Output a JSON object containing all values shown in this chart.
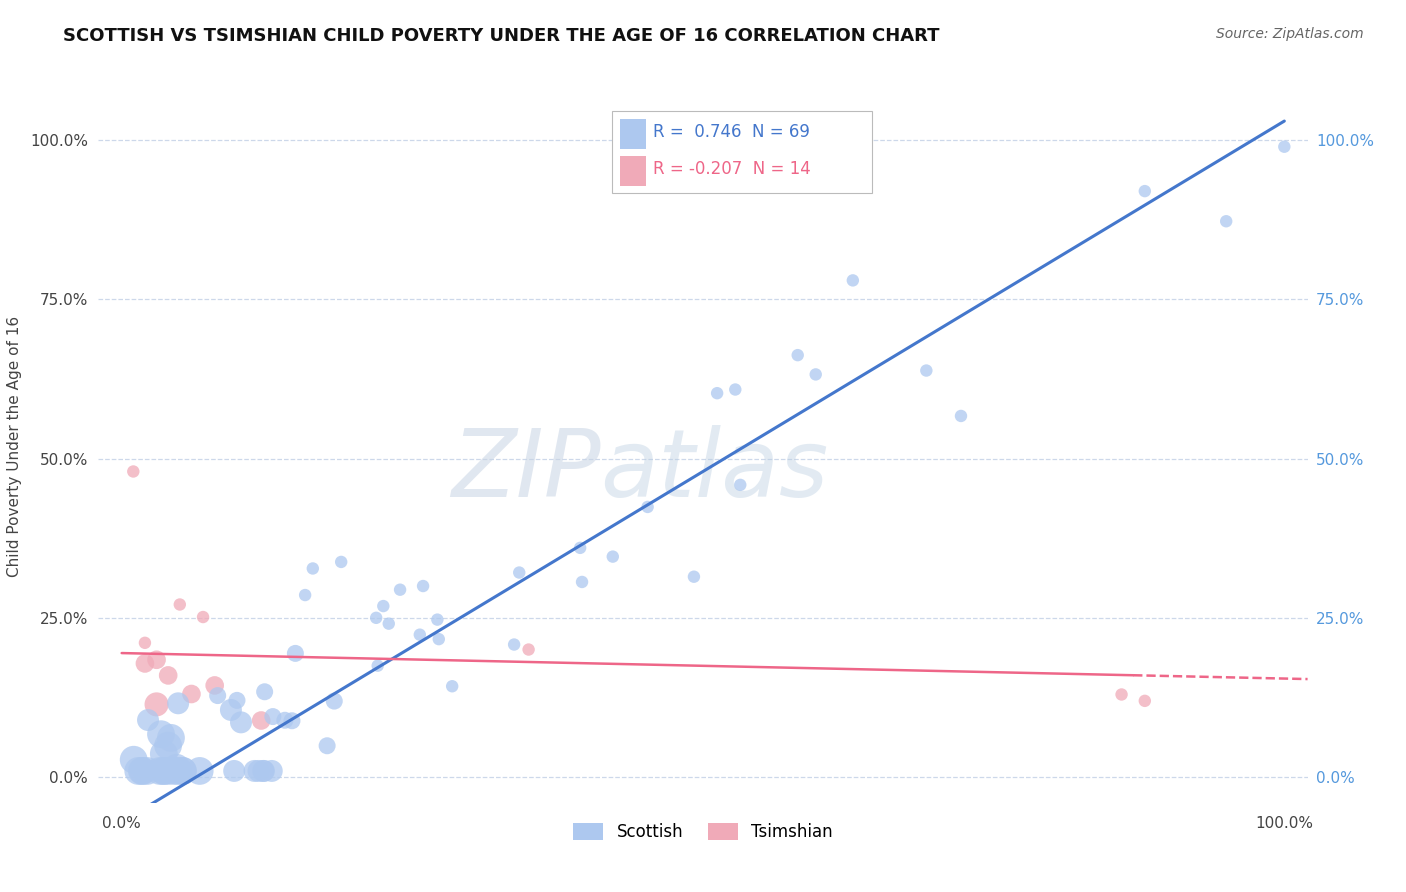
{
  "title": "SCOTTISH VS TSIMSHIAN CHILD POVERTY UNDER THE AGE OF 16 CORRELATION CHART",
  "source": "Source: ZipAtlas.com",
  "ylabel": "Child Poverty Under the Age of 16",
  "xlim": [
    -0.02,
    1.02
  ],
  "ylim": [
    -0.04,
    1.08
  ],
  "xtick_positions": [
    0.0,
    1.0
  ],
  "xtick_labels": [
    "0.0%",
    "100.0%"
  ],
  "ytick_vals": [
    0.0,
    0.25,
    0.5,
    0.75,
    1.0
  ],
  "ytick_labels": [
    "0.0%",
    "25.0%",
    "50.0%",
    "75.0%",
    "100.0%"
  ],
  "watermark_zip": "ZIP",
  "watermark_atlas": "atlas",
  "legend_r1": "R =  0.746",
  "legend_n1": "N = 69",
  "legend_r2": "R = -0.207",
  "legend_n2": "N = 14",
  "scottish_color": "#adc8ef",
  "tsimshian_color": "#f0aab8",
  "line_scottish_color": "#4477cc",
  "line_tsimshian_color": "#ee6688",
  "background_color": "#ffffff",
  "grid_color": "#c8d4e8",
  "right_tick_color": "#5599dd",
  "scottish_seed": 12345,
  "tsimshian_seed": 67890
}
